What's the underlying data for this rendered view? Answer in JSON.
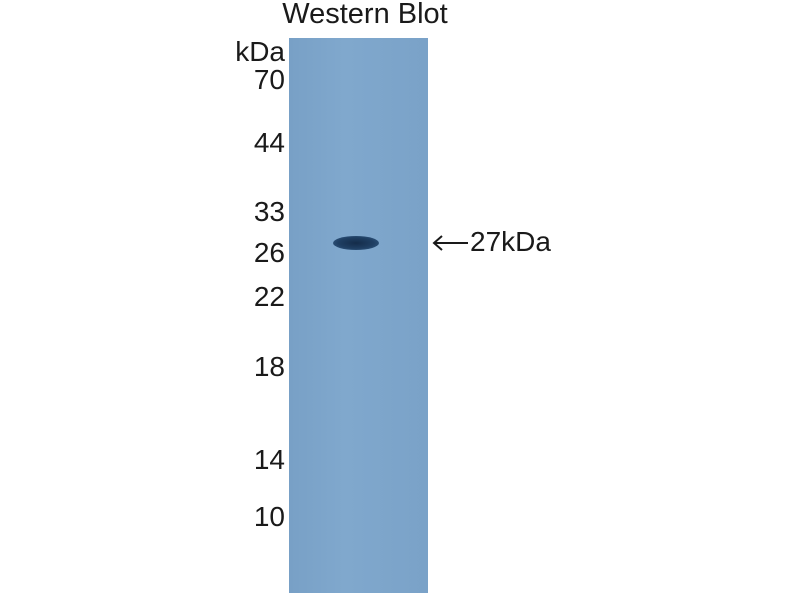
{
  "title": "Western Blot",
  "unit_label": "kDa",
  "markers": [
    "70",
    "44",
    "33",
    "26",
    "22",
    "18",
    "14",
    "10"
  ],
  "band_annotation": "27kDa",
  "colors": {
    "membrane": "#7ba3c8",
    "band": "#1f3f63",
    "text": "#1a1a1a"
  }
}
